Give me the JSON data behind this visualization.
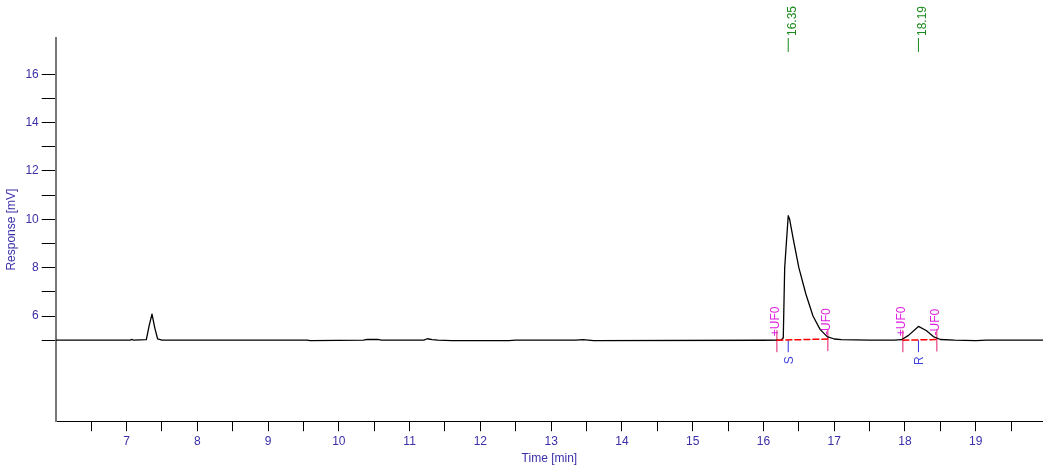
{
  "chart_data": {
    "type": "line",
    "xlabel": "Time [min]",
    "ylabel": "Response [mV]",
    "xlim": [
      6,
      19.95
    ],
    "ylim": [
      1.65,
      17.5
    ],
    "xticks": [
      {
        "value": 6.5,
        "label": null
      },
      7,
      {
        "value": 7.5,
        "label": null
      },
      8,
      {
        "value": 8.5,
        "label": null
      },
      9,
      {
        "value": 9.5,
        "label": null
      },
      10,
      {
        "value": 10.5,
        "label": null
      },
      11,
      {
        "value": 11.5,
        "label": null
      },
      12,
      {
        "value": 12.5,
        "label": null
      },
      13,
      {
        "value": 13.5,
        "label": null
      },
      14,
      {
        "value": 14.5,
        "label": null
      },
      15,
      {
        "value": 15.5,
        "label": null
      },
      16,
      {
        "value": 16.5,
        "label": null
      },
      17,
      {
        "value": 17.5,
        "label": null
      },
      18,
      {
        "value": 18.5,
        "label": null
      },
      19,
      {
        "value": 19.5,
        "label": null
      }
    ],
    "yticks": [
      {
        "value": 5,
        "label": null
      },
      6,
      {
        "value": 7,
        "label": null
      },
      8,
      {
        "value": 9,
        "label": null
      },
      10,
      {
        "value": 11,
        "label": null
      },
      12,
      {
        "value": 13,
        "label": null
      },
      14,
      {
        "value": 15,
        "label": null
      },
      16
    ],
    "ref_lines": [
      {
        "axis": "x",
        "value": 16.35,
        "label": "16.35",
        "color": "#1a8a1a"
      },
      {
        "axis": "x",
        "value": 18.19,
        "label": "18.19",
        "color": "#1a8a1a"
      }
    ],
    "grid": false,
    "legend": false,
    "marker": "none",
    "series": [
      {
        "color": "#000000",
        "line_style": "solid",
        "x": [
          6.0,
          7.05,
          7.08,
          7.1,
          7.28,
          7.32,
          7.36,
          7.4,
          7.44,
          7.5,
          9.55,
          9.6,
          10.35,
          10.4,
          10.55,
          10.6,
          11.2,
          11.25,
          11.32,
          11.4,
          11.6,
          11.9,
          12.4,
          12.5,
          13.35,
          13.45,
          13.6,
          16.25,
          16.28,
          16.3,
          16.35,
          16.37,
          16.42,
          16.5,
          16.6,
          16.7,
          16.8,
          16.9,
          17.0,
          17.1,
          17.5,
          17.85,
          17.95,
          18.05,
          18.19,
          18.3,
          18.4,
          18.5,
          18.7,
          19.0,
          19.15,
          19.95
        ],
        "values": [
          5.0,
          5.0,
          5.03,
          5.0,
          5.02,
          5.6,
          6.08,
          5.5,
          5.05,
          5.0,
          5.0,
          4.98,
          5.0,
          5.03,
          5.03,
          5.0,
          5.0,
          5.06,
          5.02,
          5.0,
          4.98,
          4.98,
          4.98,
          5.0,
          5.0,
          5.02,
          4.98,
          5.0,
          5.1,
          8.0,
          10.15,
          10.0,
          9.2,
          8.0,
          6.9,
          6.0,
          5.45,
          5.15,
          5.05,
          5.02,
          5.0,
          5.0,
          5.02,
          5.2,
          5.57,
          5.4,
          5.15,
          5.03,
          5.0,
          4.98,
          5.0,
          5.0
        ]
      },
      {
        "color": "#ff0000",
        "line_style": "dashed",
        "x": [
          16.19,
          16.91
        ],
        "values": [
          5.0,
          5.05
        ]
      },
      {
        "color": "#ff0000",
        "line_style": "dashed",
        "x": [
          17.97,
          18.45
        ],
        "values": [
          5.0,
          5.03
        ]
      }
    ],
    "annotations": [
      {
        "text": "+UF0",
        "x": 16.19,
        "y": 5.0
      },
      {
        "text": "-UF0",
        "x": 16.91,
        "y": 5.05
      },
      {
        "text": "+UF0",
        "x": 17.97,
        "y": 5.0
      },
      {
        "text": "-UF0",
        "x": 18.45,
        "y": 5.03
      },
      {
        "text": "S",
        "x": 16.35,
        "y": 5.0
      },
      {
        "text": "R",
        "x": 18.19,
        "y": 5.0
      }
    ]
  }
}
